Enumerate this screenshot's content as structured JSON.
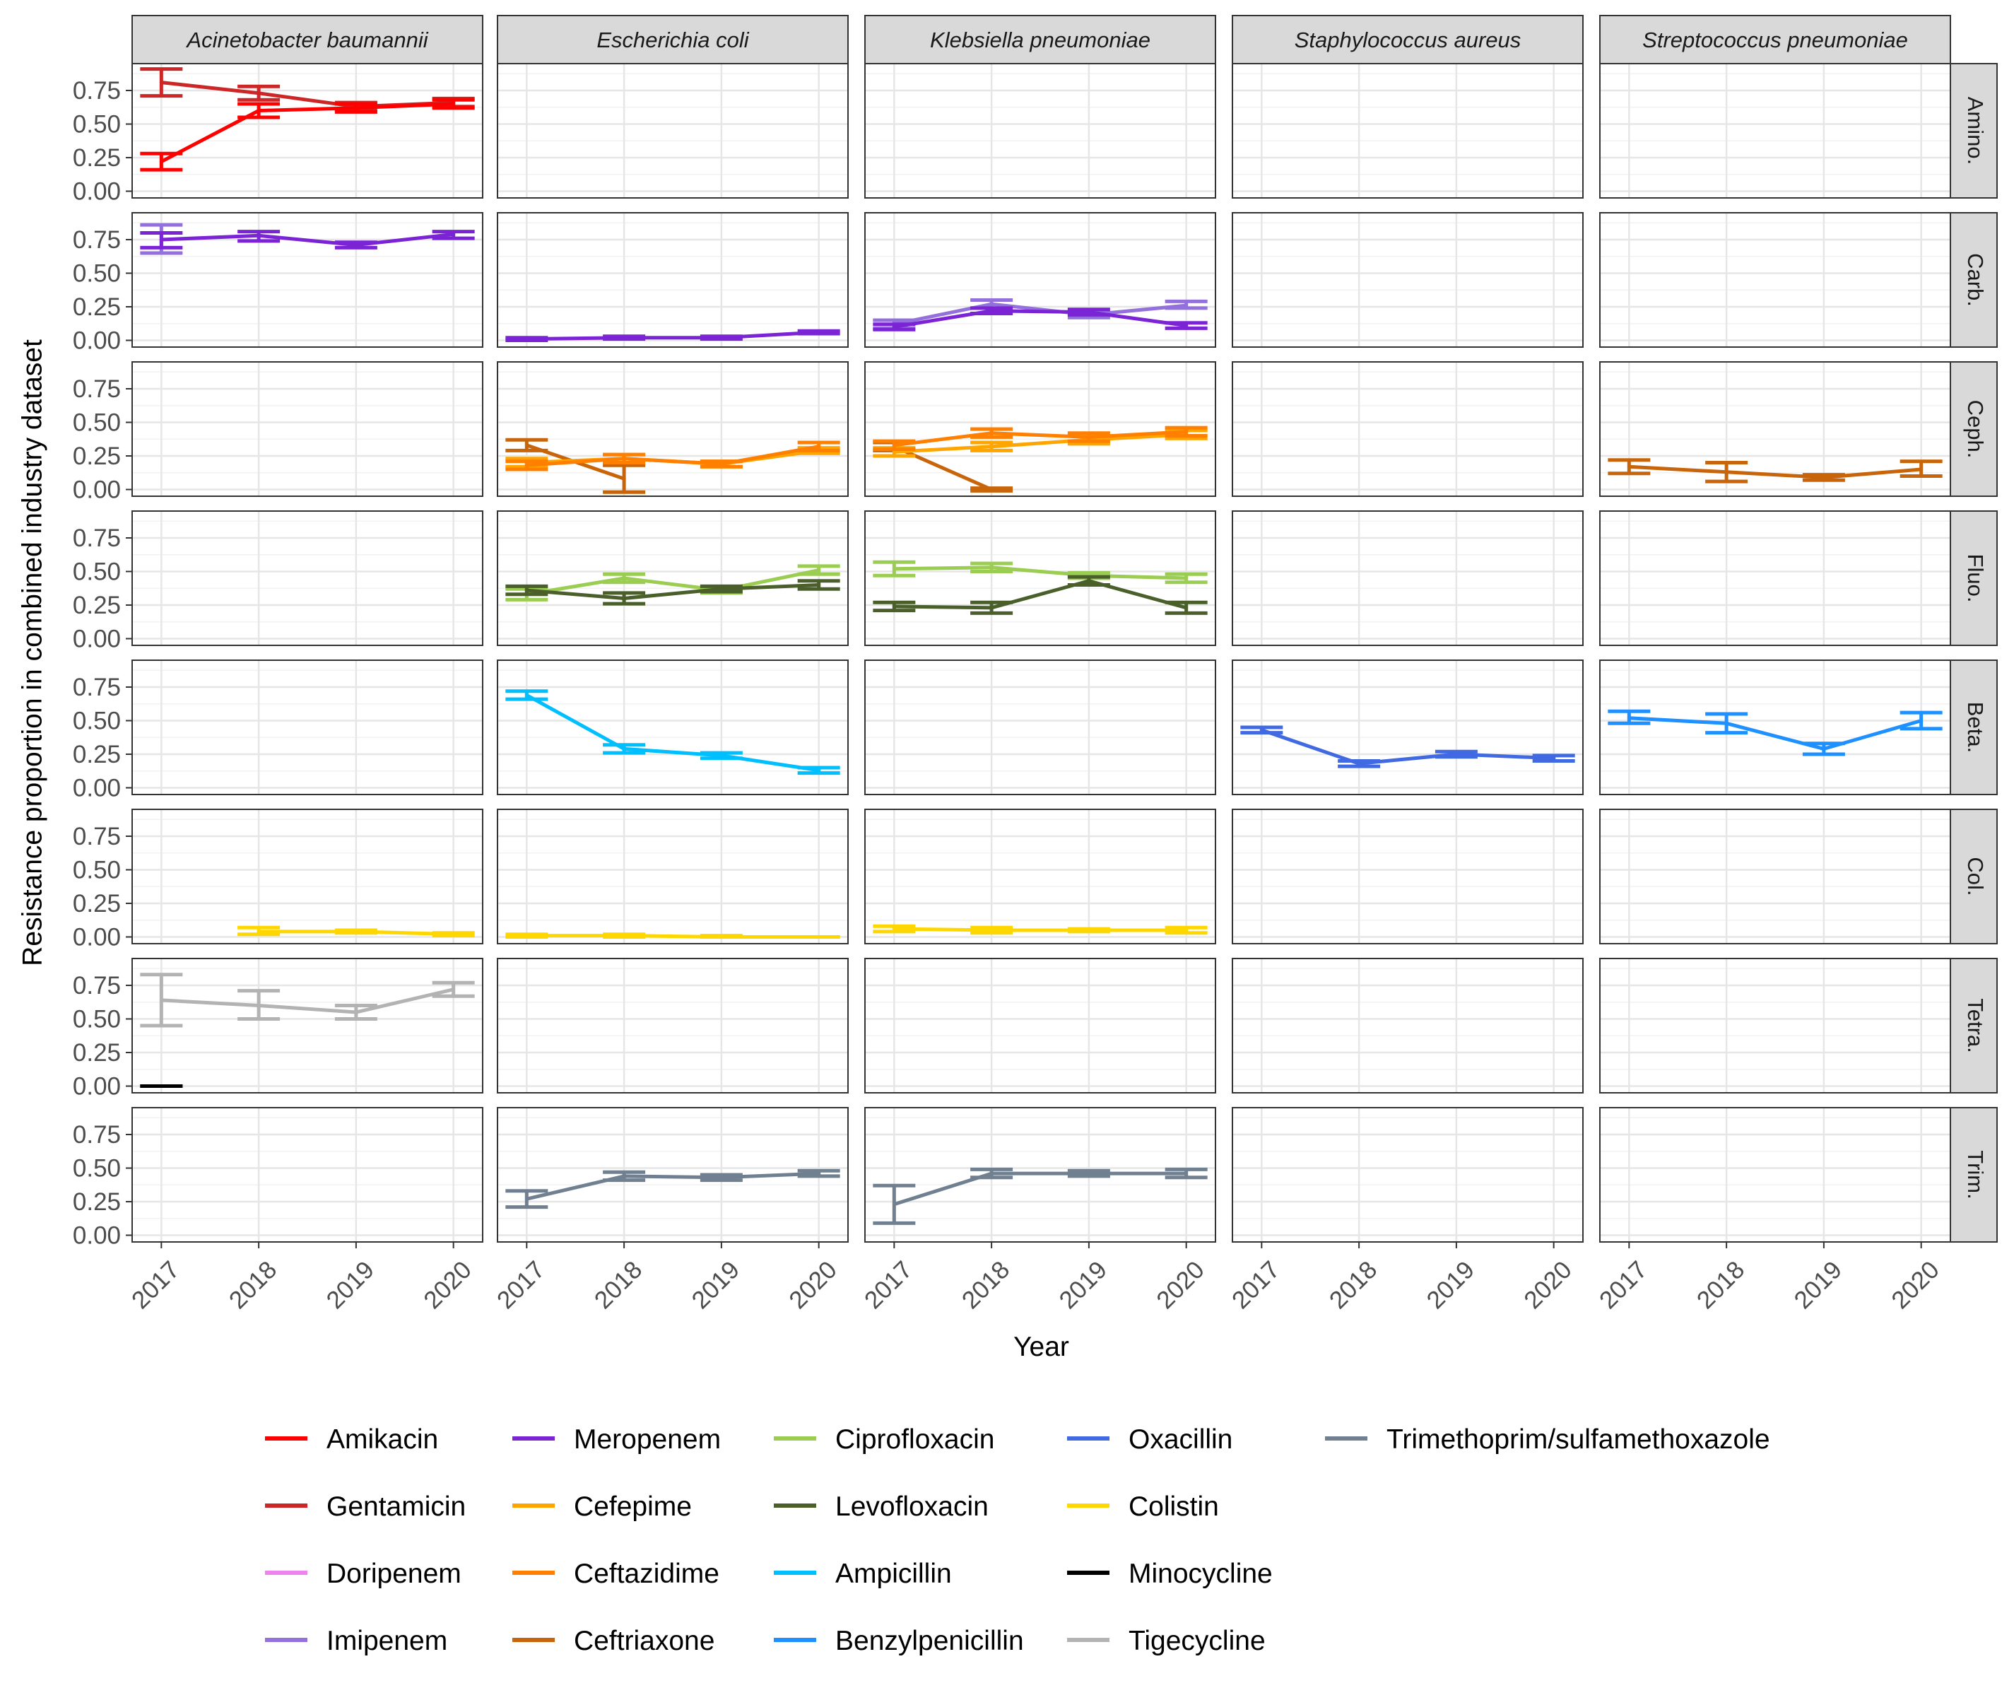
{
  "chart_data": {
    "type": "line",
    "ylabel": "Resistance proportion in combined industry dataset",
    "xlabel": "Year",
    "x": [
      "2017",
      "2018",
      "2019",
      "2020"
    ],
    "y_ticks": [
      "0.00",
      "0.25",
      "0.50",
      "0.75"
    ],
    "ylim": [
      -0.05,
      0.95
    ],
    "grid": true,
    "legend_position": "bottom",
    "columns": [
      "Acinetobacter baumannii",
      "Escherichia coli",
      "Klebsiella pneumoniae",
      "Staphylococcus aureus",
      "Streptococcus pneumoniae"
    ],
    "rows": [
      "Amino.",
      "Carb.",
      "Ceph.",
      "Fluo.",
      "Beta.",
      "Col.",
      "Tetra.",
      "Trim."
    ],
    "legend": [
      {
        "name": "Amikacin",
        "color": "#FF0000"
      },
      {
        "name": "Gentamicin",
        "color": "#CD2626"
      },
      {
        "name": "Doripenem",
        "color": "#EE82EE"
      },
      {
        "name": "Imipenem",
        "color": "#9370DB"
      },
      {
        "name": "Meropenem",
        "color": "#7B24D6"
      },
      {
        "name": "Cefepime",
        "color": "#FFA500"
      },
      {
        "name": "Ceftazidime",
        "color": "#FF7F00"
      },
      {
        "name": "Ceftriaxone",
        "color": "#C8650A"
      },
      {
        "name": "Ciprofloxacin",
        "color": "#9ACD52"
      },
      {
        "name": "Levofloxacin",
        "color": "#4A5F2A"
      },
      {
        "name": "Ampicillin",
        "color": "#00BFFF"
      },
      {
        "name": "Benzylpenicillin",
        "color": "#1E90FF"
      },
      {
        "name": "Oxacillin",
        "color": "#4169E1"
      },
      {
        "name": "Colistin",
        "color": "#FFD700"
      },
      {
        "name": "Minocycline",
        "color": "#000000"
      },
      {
        "name": "Tigecycline",
        "color": "#B3B3B3"
      },
      {
        "name": "Trimethoprim/sulfamethoxazole",
        "color": "#708090"
      }
    ],
    "series": [
      {
        "name": "Gentamicin",
        "row": 0,
        "col": 0,
        "points": [
          [
            2017,
            0.81,
            0.71,
            0.91
          ],
          [
            2018,
            0.73,
            0.68,
            0.78
          ],
          [
            2019,
            0.63,
            0.6,
            0.66
          ],
          [
            2020,
            0.66,
            0.63,
            0.69
          ]
        ]
      },
      {
        "name": "Amikacin",
        "row": 0,
        "col": 0,
        "points": [
          [
            2017,
            0.22,
            0.16,
            0.28
          ],
          [
            2018,
            0.6,
            0.55,
            0.65
          ],
          [
            2019,
            0.62,
            0.59,
            0.65
          ],
          [
            2020,
            0.65,
            0.62,
            0.68
          ]
        ]
      },
      {
        "name": "Imipenem",
        "row": 1,
        "col": 0,
        "points": [
          [
            2017,
            0.75,
            0.65,
            0.86
          ]
        ]
      },
      {
        "name": "Meropenem",
        "row": 1,
        "col": 0,
        "points": [
          [
            2017,
            0.75,
            0.69,
            0.8
          ],
          [
            2018,
            0.78,
            0.74,
            0.81
          ],
          [
            2019,
            0.71,
            0.69,
            0.73
          ],
          [
            2020,
            0.79,
            0.76,
            0.81
          ]
        ]
      },
      {
        "name": "Meropenem",
        "row": 1,
        "col": 1,
        "points": [
          [
            2017,
            0.01,
            0.0,
            0.02
          ],
          [
            2018,
            0.02,
            0.01,
            0.03
          ],
          [
            2019,
            0.02,
            0.01,
            0.03
          ],
          [
            2020,
            0.06,
            0.05,
            0.07
          ]
        ]
      },
      {
        "name": "Imipenem",
        "row": 1,
        "col": 2,
        "points": [
          [
            2017,
            0.12,
            0.09,
            0.15
          ],
          [
            2018,
            0.27,
            0.24,
            0.3
          ],
          [
            2019,
            0.19,
            0.17,
            0.21
          ],
          [
            2020,
            0.26,
            0.24,
            0.29
          ]
        ]
      },
      {
        "name": "Meropenem",
        "row": 1,
        "col": 2,
        "points": [
          [
            2017,
            0.1,
            0.08,
            0.12
          ],
          [
            2018,
            0.22,
            0.2,
            0.24
          ],
          [
            2019,
            0.21,
            0.19,
            0.23
          ],
          [
            2020,
            0.11,
            0.09,
            0.13
          ]
        ]
      },
      {
        "name": "Ceftriaxone",
        "row": 2,
        "col": 1,
        "points": [
          [
            2017,
            0.33,
            0.29,
            0.37
          ],
          [
            2018,
            0.08,
            -0.02,
            0.18
          ]
        ]
      },
      {
        "name": "Cefepime",
        "row": 2,
        "col": 1,
        "points": [
          [
            2017,
            0.2,
            0.17,
            0.23
          ],
          [
            2018,
            0.23,
            0.2,
            0.26
          ],
          [
            2019,
            0.19,
            0.17,
            0.21
          ],
          [
            2020,
            0.29,
            0.27,
            0.31
          ]
        ]
      },
      {
        "name": "Ceftazidime",
        "row": 2,
        "col": 1,
        "points": [
          [
            2017,
            0.18,
            0.15,
            0.21
          ],
          [
            2018,
            0.23,
            0.2,
            0.26
          ],
          [
            2019,
            0.19,
            0.17,
            0.21
          ],
          [
            2020,
            0.32,
            0.29,
            0.35
          ]
        ]
      },
      {
        "name": "Ceftriaxone",
        "row": 2,
        "col": 2,
        "points": [
          [
            2017,
            0.32,
            0.29,
            0.35
          ],
          [
            2018,
            0.0,
            -0.01,
            0.01
          ]
        ]
      },
      {
        "name": "Cefepime",
        "row": 2,
        "col": 2,
        "points": [
          [
            2017,
            0.28,
            0.25,
            0.31
          ],
          [
            2018,
            0.32,
            0.29,
            0.35
          ],
          [
            2019,
            0.37,
            0.34,
            0.4
          ],
          [
            2020,
            0.41,
            0.38,
            0.44
          ]
        ]
      },
      {
        "name": "Ceftazidime",
        "row": 2,
        "col": 2,
        "points": [
          [
            2017,
            0.33,
            0.3,
            0.36
          ],
          [
            2018,
            0.42,
            0.39,
            0.45
          ],
          [
            2019,
            0.39,
            0.36,
            0.42
          ],
          [
            2020,
            0.43,
            0.4,
            0.46
          ]
        ]
      },
      {
        "name": "Ceftriaxone",
        "row": 2,
        "col": 4,
        "points": [
          [
            2017,
            0.17,
            0.12,
            0.22
          ],
          [
            2018,
            0.13,
            0.06,
            0.2
          ],
          [
            2019,
            0.09,
            0.07,
            0.11
          ],
          [
            2020,
            0.15,
            0.1,
            0.21
          ]
        ]
      },
      {
        "name": "Ciprofloxacin",
        "row": 3,
        "col": 1,
        "points": [
          [
            2017,
            0.33,
            0.29,
            0.37
          ],
          [
            2018,
            0.45,
            0.42,
            0.48
          ],
          [
            2019,
            0.36,
            0.34,
            0.38
          ],
          [
            2020,
            0.51,
            0.48,
            0.54
          ]
        ]
      },
      {
        "name": "Levofloxacin",
        "row": 3,
        "col": 1,
        "points": [
          [
            2017,
            0.36,
            0.33,
            0.39
          ],
          [
            2018,
            0.3,
            0.26,
            0.34
          ],
          [
            2019,
            0.37,
            0.35,
            0.39
          ],
          [
            2020,
            0.4,
            0.37,
            0.43
          ]
        ]
      },
      {
        "name": "Ciprofloxacin",
        "row": 3,
        "col": 2,
        "points": [
          [
            2017,
            0.52,
            0.47,
            0.57
          ],
          [
            2018,
            0.53,
            0.5,
            0.56
          ],
          [
            2019,
            0.47,
            0.45,
            0.49
          ],
          [
            2020,
            0.45,
            0.42,
            0.48
          ]
        ]
      },
      {
        "name": "Levofloxacin",
        "row": 3,
        "col": 2,
        "points": [
          [
            2017,
            0.24,
            0.21,
            0.27
          ],
          [
            2018,
            0.23,
            0.19,
            0.27
          ],
          [
            2019,
            0.43,
            0.4,
            0.46
          ],
          [
            2020,
            0.23,
            0.19,
            0.27
          ]
        ]
      },
      {
        "name": "Ampicillin",
        "row": 4,
        "col": 1,
        "points": [
          [
            2017,
            0.69,
            0.66,
            0.72
          ],
          [
            2018,
            0.29,
            0.26,
            0.32
          ],
          [
            2019,
            0.24,
            0.22,
            0.26
          ],
          [
            2020,
            0.13,
            0.11,
            0.15
          ]
        ]
      },
      {
        "name": "Oxacillin",
        "row": 4,
        "col": 3,
        "points": [
          [
            2017,
            0.43,
            0.41,
            0.45
          ],
          [
            2018,
            0.18,
            0.16,
            0.2
          ],
          [
            2019,
            0.25,
            0.23,
            0.27
          ],
          [
            2020,
            0.22,
            0.2,
            0.24
          ]
        ]
      },
      {
        "name": "Benzylpenicillin",
        "row": 4,
        "col": 4,
        "points": [
          [
            2017,
            0.52,
            0.48,
            0.57
          ],
          [
            2018,
            0.48,
            0.41,
            0.55
          ],
          [
            2019,
            0.29,
            0.25,
            0.33
          ],
          [
            2020,
            0.5,
            0.44,
            0.56
          ]
        ]
      },
      {
        "name": "Colistin",
        "row": 5,
        "col": 0,
        "points": [
          [
            2018,
            0.04,
            0.02,
            0.07
          ],
          [
            2019,
            0.04,
            0.03,
            0.05
          ],
          [
            2020,
            0.02,
            0.01,
            0.03
          ]
        ]
      },
      {
        "name": "Colistin",
        "row": 5,
        "col": 1,
        "points": [
          [
            2017,
            0.01,
            0.0,
            0.02
          ],
          [
            2018,
            0.01,
            0.0,
            0.02
          ],
          [
            2019,
            0.0,
            0.0,
            0.01
          ],
          [
            2020,
            0.0,
            0.0,
            0.0
          ]
        ]
      },
      {
        "name": "Colistin",
        "row": 5,
        "col": 2,
        "points": [
          [
            2017,
            0.06,
            0.04,
            0.08
          ],
          [
            2018,
            0.05,
            0.03,
            0.07
          ],
          [
            2019,
            0.05,
            0.04,
            0.06
          ],
          [
            2020,
            0.05,
            0.03,
            0.07
          ]
        ]
      },
      {
        "name": "Tigecycline",
        "row": 6,
        "col": 0,
        "points": [
          [
            2017,
            0.64,
            0.45,
            0.83
          ],
          [
            2018,
            0.6,
            0.5,
            0.71
          ],
          [
            2019,
            0.55,
            0.5,
            0.6
          ],
          [
            2020,
            0.72,
            0.67,
            0.77
          ]
        ]
      },
      {
        "name": "Minocycline",
        "row": 6,
        "col": 0,
        "points": [
          [
            2017,
            0.0,
            0.0,
            0.0
          ]
        ]
      },
      {
        "name": "Trimethoprim/sulfamethoxazole",
        "row": 7,
        "col": 1,
        "points": [
          [
            2017,
            0.27,
            0.21,
            0.33
          ],
          [
            2018,
            0.44,
            0.41,
            0.47
          ],
          [
            2019,
            0.43,
            0.41,
            0.45
          ],
          [
            2020,
            0.46,
            0.44,
            0.48
          ]
        ]
      },
      {
        "name": "Trimethoprim/sulfamethoxazole",
        "row": 7,
        "col": 2,
        "points": [
          [
            2017,
            0.23,
            0.09,
            0.37
          ],
          [
            2018,
            0.46,
            0.43,
            0.49
          ],
          [
            2019,
            0.46,
            0.44,
            0.48
          ],
          [
            2020,
            0.46,
            0.43,
            0.49
          ]
        ]
      }
    ]
  }
}
